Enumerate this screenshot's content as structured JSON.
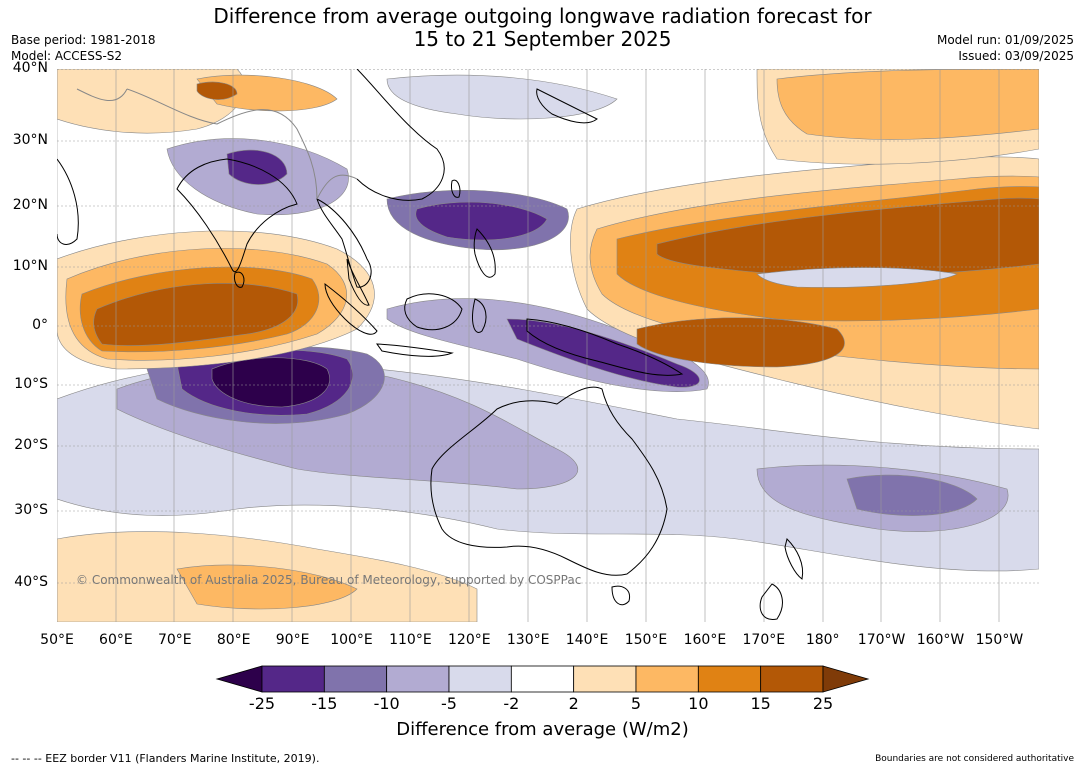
{
  "title_line1": "Difference from average outgoing longwave radiation forecast for",
  "title_line2": "15 to 21 September 2025",
  "base_period": "Base period: 1981-2018",
  "model": "Model: ACCESS-S2",
  "model_run": "Model run: 01/09/2025",
  "issued": "Issued: 03/09/2025",
  "lat_labels": [
    "40°N",
    "30°N",
    "20°N",
    "10°N",
    "0°",
    "10°S",
    "20°S",
    "30°S",
    "40°S"
  ],
  "lon_labels": [
    "50°E",
    "60°E",
    "70°E",
    "80°E",
    "90°E",
    "100°E",
    "110°E",
    "120°E",
    "130°E",
    "140°E",
    "150°E",
    "160°E",
    "170°E",
    "180°",
    "170°W",
    "160°W",
    "150°W"
  ],
  "copyright": "© Commonwealth of Australia 2025, Bureau of Meteorology, supported by COSPPac",
  "colorbar": {
    "ticks": [
      "-25",
      "-15",
      "-10",
      "-5",
      "-2",
      "2",
      "5",
      "10",
      "15",
      "25"
    ],
    "colors": [
      "#2d004b",
      "#542788",
      "#8073ac",
      "#b2abd2",
      "#d8daeb",
      "#ffffff",
      "#fee0b6",
      "#fdb863",
      "#e08214",
      "#b35806",
      "#7f3b08"
    ],
    "title": "Difference from average (W/m2)"
  },
  "footer_left": "--  --  -- EEZ border V11 (Flanders Marine Institute, 2019).",
  "footer_right": "Boundaries are not considered authoritative"
}
